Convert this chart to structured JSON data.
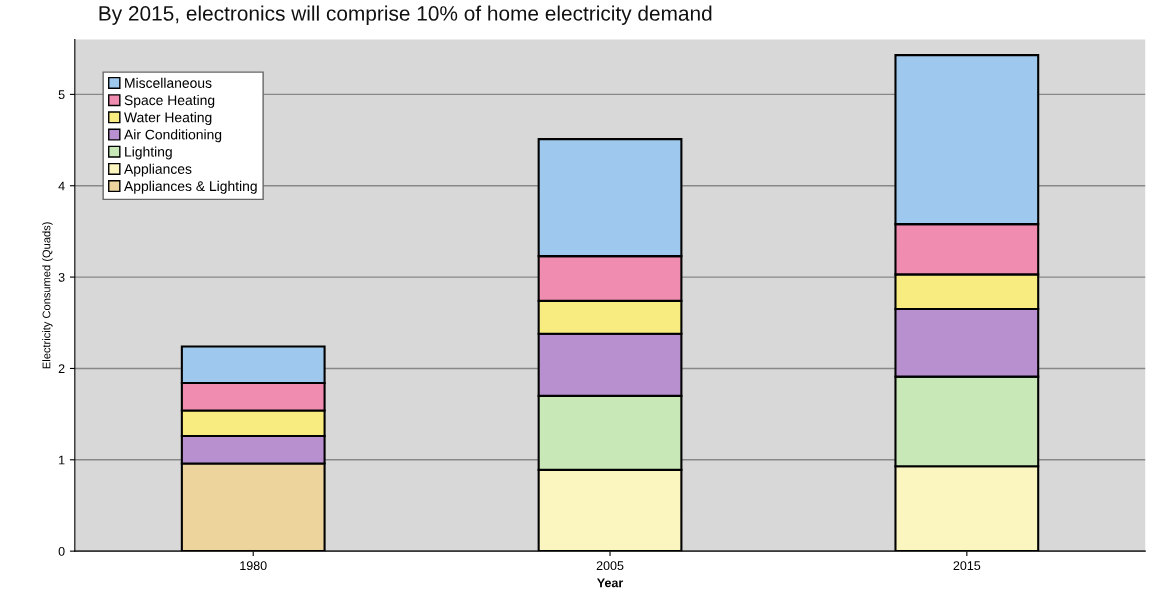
{
  "chart_data": {
    "type": "bar",
    "title": "By 2015, electronics will comprise 10% of home electricity demand",
    "xlabel": "Year",
    "ylabel": "Electricity Consumed (Quads)",
    "categories": [
      "1980",
      "2005",
      "2015"
    ],
    "stacked": true,
    "series": [
      {
        "name": "Appliances & Lighting",
        "color": "#ecd49c",
        "values": [
          0.96,
          null,
          null
        ]
      },
      {
        "name": "Appliances",
        "color": "#fbf5c0",
        "values": [
          null,
          0.89,
          0.93
        ]
      },
      {
        "name": "Lighting",
        "color": "#c8e8b8",
        "values": [
          null,
          0.81,
          0.98
        ]
      },
      {
        "name": "Air Conditioning",
        "color": "#b890d0",
        "values": [
          0.3,
          0.68,
          0.74
        ]
      },
      {
        "name": "Water Heating",
        "color": "#f8ec80",
        "values": [
          0.28,
          0.36,
          0.38
        ]
      },
      {
        "name": "Space Heating",
        "color": "#f08cb0",
        "values": [
          0.3,
          0.49,
          0.55
        ]
      },
      {
        "name": "Miscellaneous",
        "color": "#9ec8ee",
        "values": [
          0.4,
          1.28,
          1.85
        ]
      }
    ],
    "ylim": [
      0,
      5.6
    ],
    "yticks": [
      0,
      1,
      2,
      3,
      4,
      5
    ],
    "grid": "y",
    "legend": "top left"
  }
}
